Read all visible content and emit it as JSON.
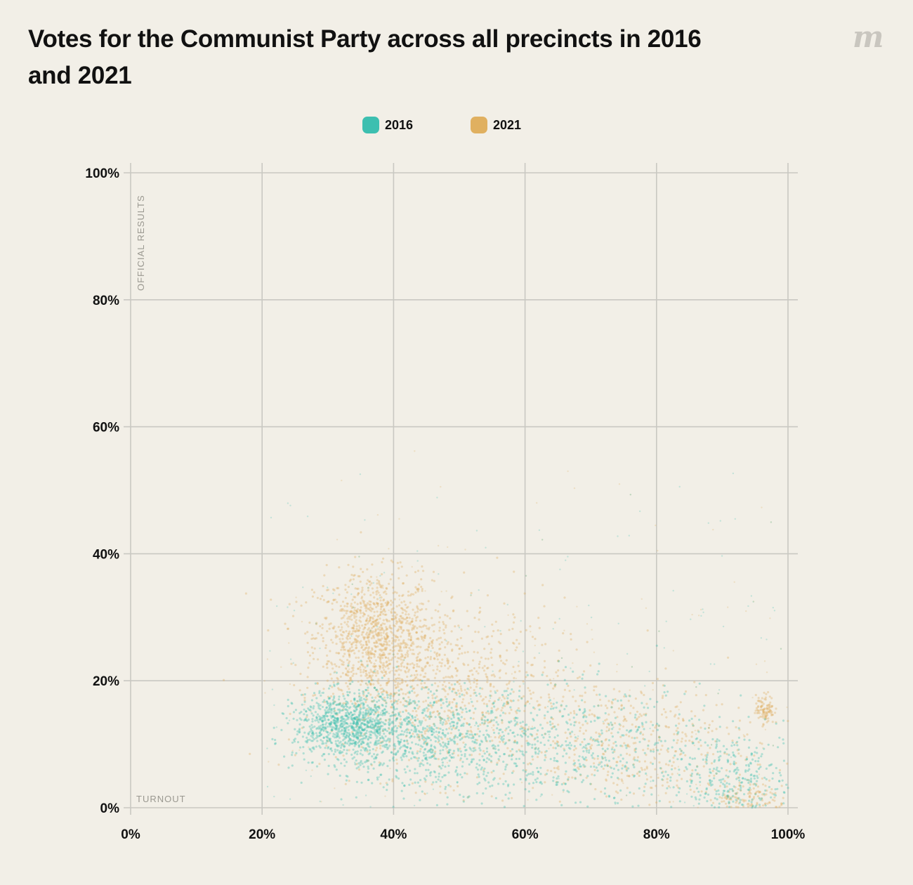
{
  "title": "Votes for the Communist Party across all precincts in 2016 and 2021",
  "logo": "m",
  "chart_data": {
    "type": "scatter",
    "title": "Votes for the Communist Party across all precincts in 2016 and 2021",
    "xlabel": "TURNOUT",
    "ylabel": "OFFICIAL RESULTS",
    "xlim": [
      0,
      100
    ],
    "ylim": [
      0,
      100
    ],
    "grid": true,
    "legend_position": "top-center",
    "x_ticks": [
      "0%",
      "20%",
      "40%",
      "60%",
      "80%",
      "100%"
    ],
    "y_ticks": [
      "0%",
      "20%",
      "40%",
      "60%",
      "80%",
      "100%"
    ],
    "series": [
      {
        "name": "2016",
        "color": "#3dbfb0",
        "clusters": [
          {
            "x_center": 33,
            "y_center": 13,
            "x_spread": 4,
            "y_spread": 2.5,
            "weight": 0.34
          },
          {
            "x_center": 45,
            "y_center": 11,
            "x_spread": 8,
            "y_spread": 4,
            "weight": 0.32
          },
          {
            "x_center": 68,
            "y_center": 9,
            "x_spread": 10,
            "y_spread": 5,
            "weight": 0.2
          },
          {
            "x_center": 92,
            "y_center": 4,
            "x_spread": 5,
            "y_spread": 4,
            "weight": 0.14
          }
        ]
      },
      {
        "name": "2021",
        "color": "#e0b060",
        "clusters": [
          {
            "x_center": 37,
            "y_center": 27,
            "x_spread": 4.5,
            "y_spread": 5,
            "weight": 0.4
          },
          {
            "x_center": 48,
            "y_center": 19,
            "x_spread": 9,
            "y_spread": 7,
            "weight": 0.32
          },
          {
            "x_center": 75,
            "y_center": 10,
            "x_spread": 10,
            "y_spread": 5,
            "weight": 0.18
          },
          {
            "x_center": 96.5,
            "y_center": 15.5,
            "x_spread": 0.7,
            "y_spread": 1.2,
            "weight": 0.04
          },
          {
            "x_center": 94,
            "y_center": 1.5,
            "x_spread": 3,
            "y_spread": 1.5,
            "weight": 0.06
          }
        ]
      }
    ]
  }
}
